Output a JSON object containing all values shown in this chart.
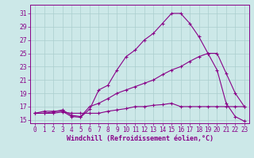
{
  "background_color": "#cce8e8",
  "grid_color": "#aacece",
  "line_color": "#880088",
  "xlabel": "Windchill (Refroidissement éolien,°C)",
  "xlim": [
    -0.5,
    23.5
  ],
  "ylim": [
    14.5,
    32.3
  ],
  "xticks": [
    0,
    1,
    2,
    3,
    4,
    5,
    6,
    7,
    8,
    9,
    10,
    11,
    12,
    13,
    14,
    15,
    16,
    17,
    18,
    19,
    20,
    21,
    22,
    23
  ],
  "yticks": [
    15,
    17,
    19,
    21,
    23,
    25,
    27,
    29,
    31
  ],
  "curve1_x": [
    0,
    1,
    2,
    3,
    4,
    5,
    6,
    7,
    8,
    9,
    10,
    11,
    12,
    13,
    14,
    15,
    16,
    17,
    18,
    19,
    20,
    21,
    22,
    23
  ],
  "curve1_y": [
    16.0,
    16.3,
    16.3,
    16.3,
    15.5,
    15.4,
    16.6,
    19.5,
    20.2,
    22.5,
    24.5,
    25.5,
    27.0,
    28.0,
    29.5,
    31.0,
    31.0,
    29.5,
    27.5,
    25.0,
    25.0,
    22.0,
    19.0,
    17.0
  ],
  "curve2_x": [
    0,
    1,
    2,
    3,
    4,
    5,
    6,
    7,
    8,
    9,
    10,
    11,
    12,
    13,
    14,
    15,
    16,
    17,
    18,
    19,
    20,
    21,
    22,
    23
  ],
  "curve2_y": [
    16.0,
    16.0,
    16.2,
    16.5,
    15.7,
    15.5,
    17.0,
    17.5,
    18.2,
    19.0,
    19.5,
    20.0,
    20.5,
    21.0,
    21.8,
    22.5,
    23.0,
    23.8,
    24.5,
    25.0,
    22.5,
    17.5,
    15.5,
    14.8
  ],
  "curve3_x": [
    0,
    1,
    2,
    3,
    4,
    5,
    6,
    7,
    8,
    9,
    10,
    11,
    12,
    13,
    14,
    15,
    16,
    17,
    18,
    19,
    20,
    21,
    22,
    23
  ],
  "curve3_y": [
    16.0,
    16.0,
    16.0,
    16.2,
    16.0,
    16.0,
    16.0,
    16.0,
    16.3,
    16.5,
    16.7,
    17.0,
    17.0,
    17.2,
    17.3,
    17.5,
    17.0,
    17.0,
    17.0,
    17.0,
    17.0,
    17.0,
    17.0,
    17.0
  ],
  "tick_fontsize": 5.5,
  "xlabel_fontsize": 6.0,
  "marker_size": 3.5,
  "line_width": 0.8
}
